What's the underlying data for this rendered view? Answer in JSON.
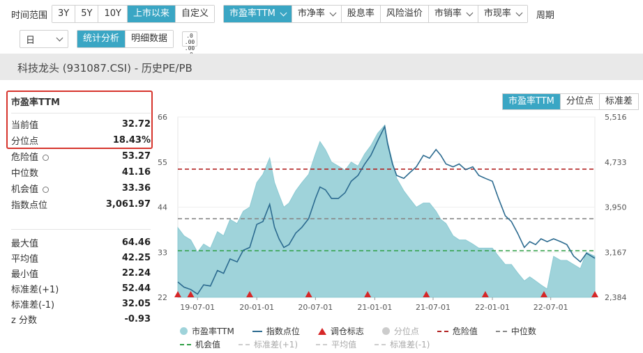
{
  "toolbar": {
    "range_label": "时间范围",
    "ranges": [
      "3Y",
      "5Y",
      "10Y",
      "上市以来",
      "自定义"
    ],
    "active_range": 3,
    "metrics": [
      "市盈率TTM",
      "市净率",
      "股息率",
      "风险溢价",
      "市销率",
      "市现率"
    ],
    "metric_has_dropdown": [
      true,
      true,
      false,
      false,
      true,
      true
    ],
    "active_metric": 0,
    "period_label": "周期",
    "period_value": "日",
    "view_tabs": [
      "统计分析",
      "明细数据"
    ],
    "active_view": 0,
    "decimal_icon_top": ".0 .00",
    "decimal_icon_bottom": ".00 .0"
  },
  "title": "科技龙头 (931087.CSI) - 历史PE/PB",
  "stats": {
    "head": "市盈率TTM",
    "group1": [
      {
        "label": "当前值",
        "value": "32.72",
        "gear": false
      },
      {
        "label": "分位点",
        "value": "18.43%",
        "gear": false
      },
      {
        "label": "危险值",
        "value": "53.27",
        "gear": true
      },
      {
        "label": "中位数",
        "value": "41.16",
        "gear": false
      },
      {
        "label": "机会值",
        "value": "33.36",
        "gear": true
      },
      {
        "label": "指数点位",
        "value": "3,061.97",
        "gear": false
      }
    ],
    "group2": [
      {
        "label": "最大值",
        "value": "64.46"
      },
      {
        "label": "平均值",
        "value": "42.25"
      },
      {
        "label": "最小值",
        "value": "22.24"
      },
      {
        "label": "标准差(+1)",
        "value": "52.44"
      },
      {
        "label": "标准差(-1)",
        "value": "32.05"
      },
      {
        "label": "z 分数",
        "value": "-0.93"
      }
    ]
  },
  "chart_tabs": [
    "市盈率TTM",
    "分位点",
    "标准差"
  ],
  "active_chart_tab": 0,
  "colors": {
    "accent": "#3aa6c4",
    "area": "#9fd3da",
    "index_line": "#2b6a8f",
    "danger": "#b22222",
    "median": "#888888",
    "opportunity": "#2e9e44",
    "marker": "#d62728",
    "highlight_box": "#d6342c"
  },
  "chart_data": {
    "type": "area",
    "left_axis_ticks": [
      "66",
      "55",
      "44",
      "33",
      "22"
    ],
    "right_axis_ticks": [
      "5,516",
      "4,733",
      "3,950",
      "3,167",
      "2,384"
    ],
    "ylim_left": [
      22,
      66
    ],
    "ylim_right": [
      2384,
      5516
    ],
    "x_ticks": [
      "19-07-01",
      "20-01-01",
      "20-07-01",
      "21-01-01",
      "21-07-01",
      "22-01-01",
      "22-07-01"
    ],
    "x_range": [
      "2019-05-01",
      "2022-11-15"
    ],
    "reference_lines": {
      "danger": 53.27,
      "median": 41.16,
      "opportunity": 33.36
    },
    "series": [
      {
        "name": "市盈率TTM",
        "x": [
          "2019-05-01",
          "2019-05-20",
          "2019-06-10",
          "2019-07-01",
          "2019-07-20",
          "2019-08-10",
          "2019-09-01",
          "2019-09-20",
          "2019-10-10",
          "2019-11-01",
          "2019-11-20",
          "2019-12-10",
          "2020-01-01",
          "2020-01-20",
          "2020-02-10",
          "2020-02-25",
          "2020-03-10",
          "2020-03-25",
          "2020-04-10",
          "2020-05-01",
          "2020-05-20",
          "2020-06-10",
          "2020-07-01",
          "2020-07-15",
          "2020-08-01",
          "2020-08-20",
          "2020-09-10",
          "2020-10-01",
          "2020-10-20",
          "2020-11-10",
          "2020-12-01",
          "2020-12-20",
          "2021-01-10",
          "2021-02-01",
          "2021-02-10",
          "2021-02-25",
          "2021-03-10",
          "2021-04-01",
          "2021-04-20",
          "2021-05-10",
          "2021-06-01",
          "2021-06-20",
          "2021-07-10",
          "2021-07-25",
          "2021-08-10",
          "2021-09-01",
          "2021-09-20",
          "2021-10-10",
          "2021-11-01",
          "2021-11-20",
          "2021-12-10",
          "2022-01-01",
          "2022-01-20",
          "2022-02-10",
          "2022-03-01",
          "2022-03-20",
          "2022-04-10",
          "2022-04-27",
          "2022-05-15",
          "2022-06-01",
          "2022-06-20",
          "2022-07-10",
          "2022-08-01",
          "2022-08-20",
          "2022-09-10",
          "2022-10-01",
          "2022-10-20",
          "2022-11-15"
        ],
        "values": [
          39,
          37,
          36,
          33,
          35,
          34,
          38,
          37,
          41,
          40,
          43,
          44,
          50,
          52,
          56,
          50,
          47,
          44,
          45,
          48,
          50,
          52,
          57,
          60,
          58,
          55,
          54,
          53,
          55,
          54,
          57,
          59,
          62,
          64,
          60,
          55,
          51,
          48,
          46,
          44,
          45,
          45,
          43,
          41,
          40,
          37,
          36,
          36,
          35,
          34,
          34,
          34,
          32,
          30,
          30,
          28,
          26,
          27,
          26,
          25,
          24,
          32,
          31,
          31,
          30,
          29,
          33,
          32
        ]
      },
      {
        "name": "指数点位",
        "x": [
          "2019-05-01",
          "2019-05-20",
          "2019-06-10",
          "2019-07-01",
          "2019-07-20",
          "2019-08-10",
          "2019-09-01",
          "2019-09-20",
          "2019-10-10",
          "2019-11-01",
          "2019-11-20",
          "2019-12-10",
          "2020-01-01",
          "2020-01-20",
          "2020-02-10",
          "2020-02-25",
          "2020-03-10",
          "2020-03-25",
          "2020-04-10",
          "2020-05-01",
          "2020-05-20",
          "2020-06-10",
          "2020-07-01",
          "2020-07-15",
          "2020-08-01",
          "2020-08-20",
          "2020-09-10",
          "2020-10-01",
          "2020-10-20",
          "2020-11-10",
          "2020-12-01",
          "2020-12-20",
          "2021-01-10",
          "2021-02-01",
          "2021-02-10",
          "2021-02-25",
          "2021-03-10",
          "2021-04-01",
          "2021-04-20",
          "2021-05-10",
          "2021-06-01",
          "2021-06-20",
          "2021-07-10",
          "2021-07-25",
          "2021-08-10",
          "2021-09-01",
          "2021-09-20",
          "2021-10-10",
          "2021-11-01",
          "2021-11-20",
          "2021-12-10",
          "2022-01-01",
          "2022-01-20",
          "2022-02-10",
          "2022-03-01",
          "2022-03-20",
          "2022-04-10",
          "2022-04-27",
          "2022-05-15",
          "2022-06-01",
          "2022-06-20",
          "2022-07-10",
          "2022-08-01",
          "2022-08-20",
          "2022-09-10",
          "2022-10-01",
          "2022-10-20",
          "2022-11-15"
        ],
        "values": [
          2650,
          2560,
          2520,
          2440,
          2600,
          2580,
          2850,
          2800,
          3050,
          3000,
          3200,
          3250,
          3650,
          3700,
          4000,
          3600,
          3400,
          3250,
          3300,
          3500,
          3600,
          3750,
          4100,
          4300,
          4250,
          4100,
          4100,
          4200,
          4400,
          4500,
          4700,
          4850,
          5100,
          5350,
          5050,
          4700,
          4500,
          4450,
          4550,
          4650,
          4850,
          4800,
          4950,
          4850,
          4700,
          4650,
          4700,
          4600,
          4650,
          4500,
          4450,
          4400,
          4100,
          3800,
          3700,
          3500,
          3250,
          3350,
          3300,
          3400,
          3350,
          3400,
          3350,
          3300,
          3100,
          3000,
          3150,
          3062
        ]
      }
    ],
    "rebalance_markers": [
      "2019-05-01",
      "2019-06-10",
      "2019-12-10",
      "2020-06-10",
      "2020-12-10",
      "2021-06-10",
      "2021-12-10",
      "2022-06-10",
      "2022-11-15"
    ]
  },
  "legend": {
    "row1": [
      {
        "label": "市盈率TTM",
        "kind": "dot",
        "color": "#9fd3da",
        "dim": false
      },
      {
        "label": "指数点位",
        "kind": "line",
        "color": "#2b6a8f",
        "dim": false
      },
      {
        "label": "调仓标志",
        "kind": "tri",
        "color": "#d62728",
        "dim": false
      },
      {
        "label": "分位点",
        "kind": "dot",
        "color": "#cccccc",
        "dim": true
      },
      {
        "label": "危险值",
        "kind": "dash",
        "color": "#b22222",
        "dim": false
      },
      {
        "label": "中位数",
        "kind": "dash",
        "color": "#888888",
        "dim": false
      }
    ],
    "row2": [
      {
        "label": "机会值",
        "kind": "dash",
        "color": "#2e9e44",
        "dim": false
      },
      {
        "label": "标准差(+1)",
        "kind": "dash",
        "color": "#cccccc",
        "dim": true
      },
      {
        "label": "平均值",
        "kind": "dash",
        "color": "#cccccc",
        "dim": true
      },
      {
        "label": "标准差(-1)",
        "kind": "dash",
        "color": "#cccccc",
        "dim": true
      }
    ]
  }
}
